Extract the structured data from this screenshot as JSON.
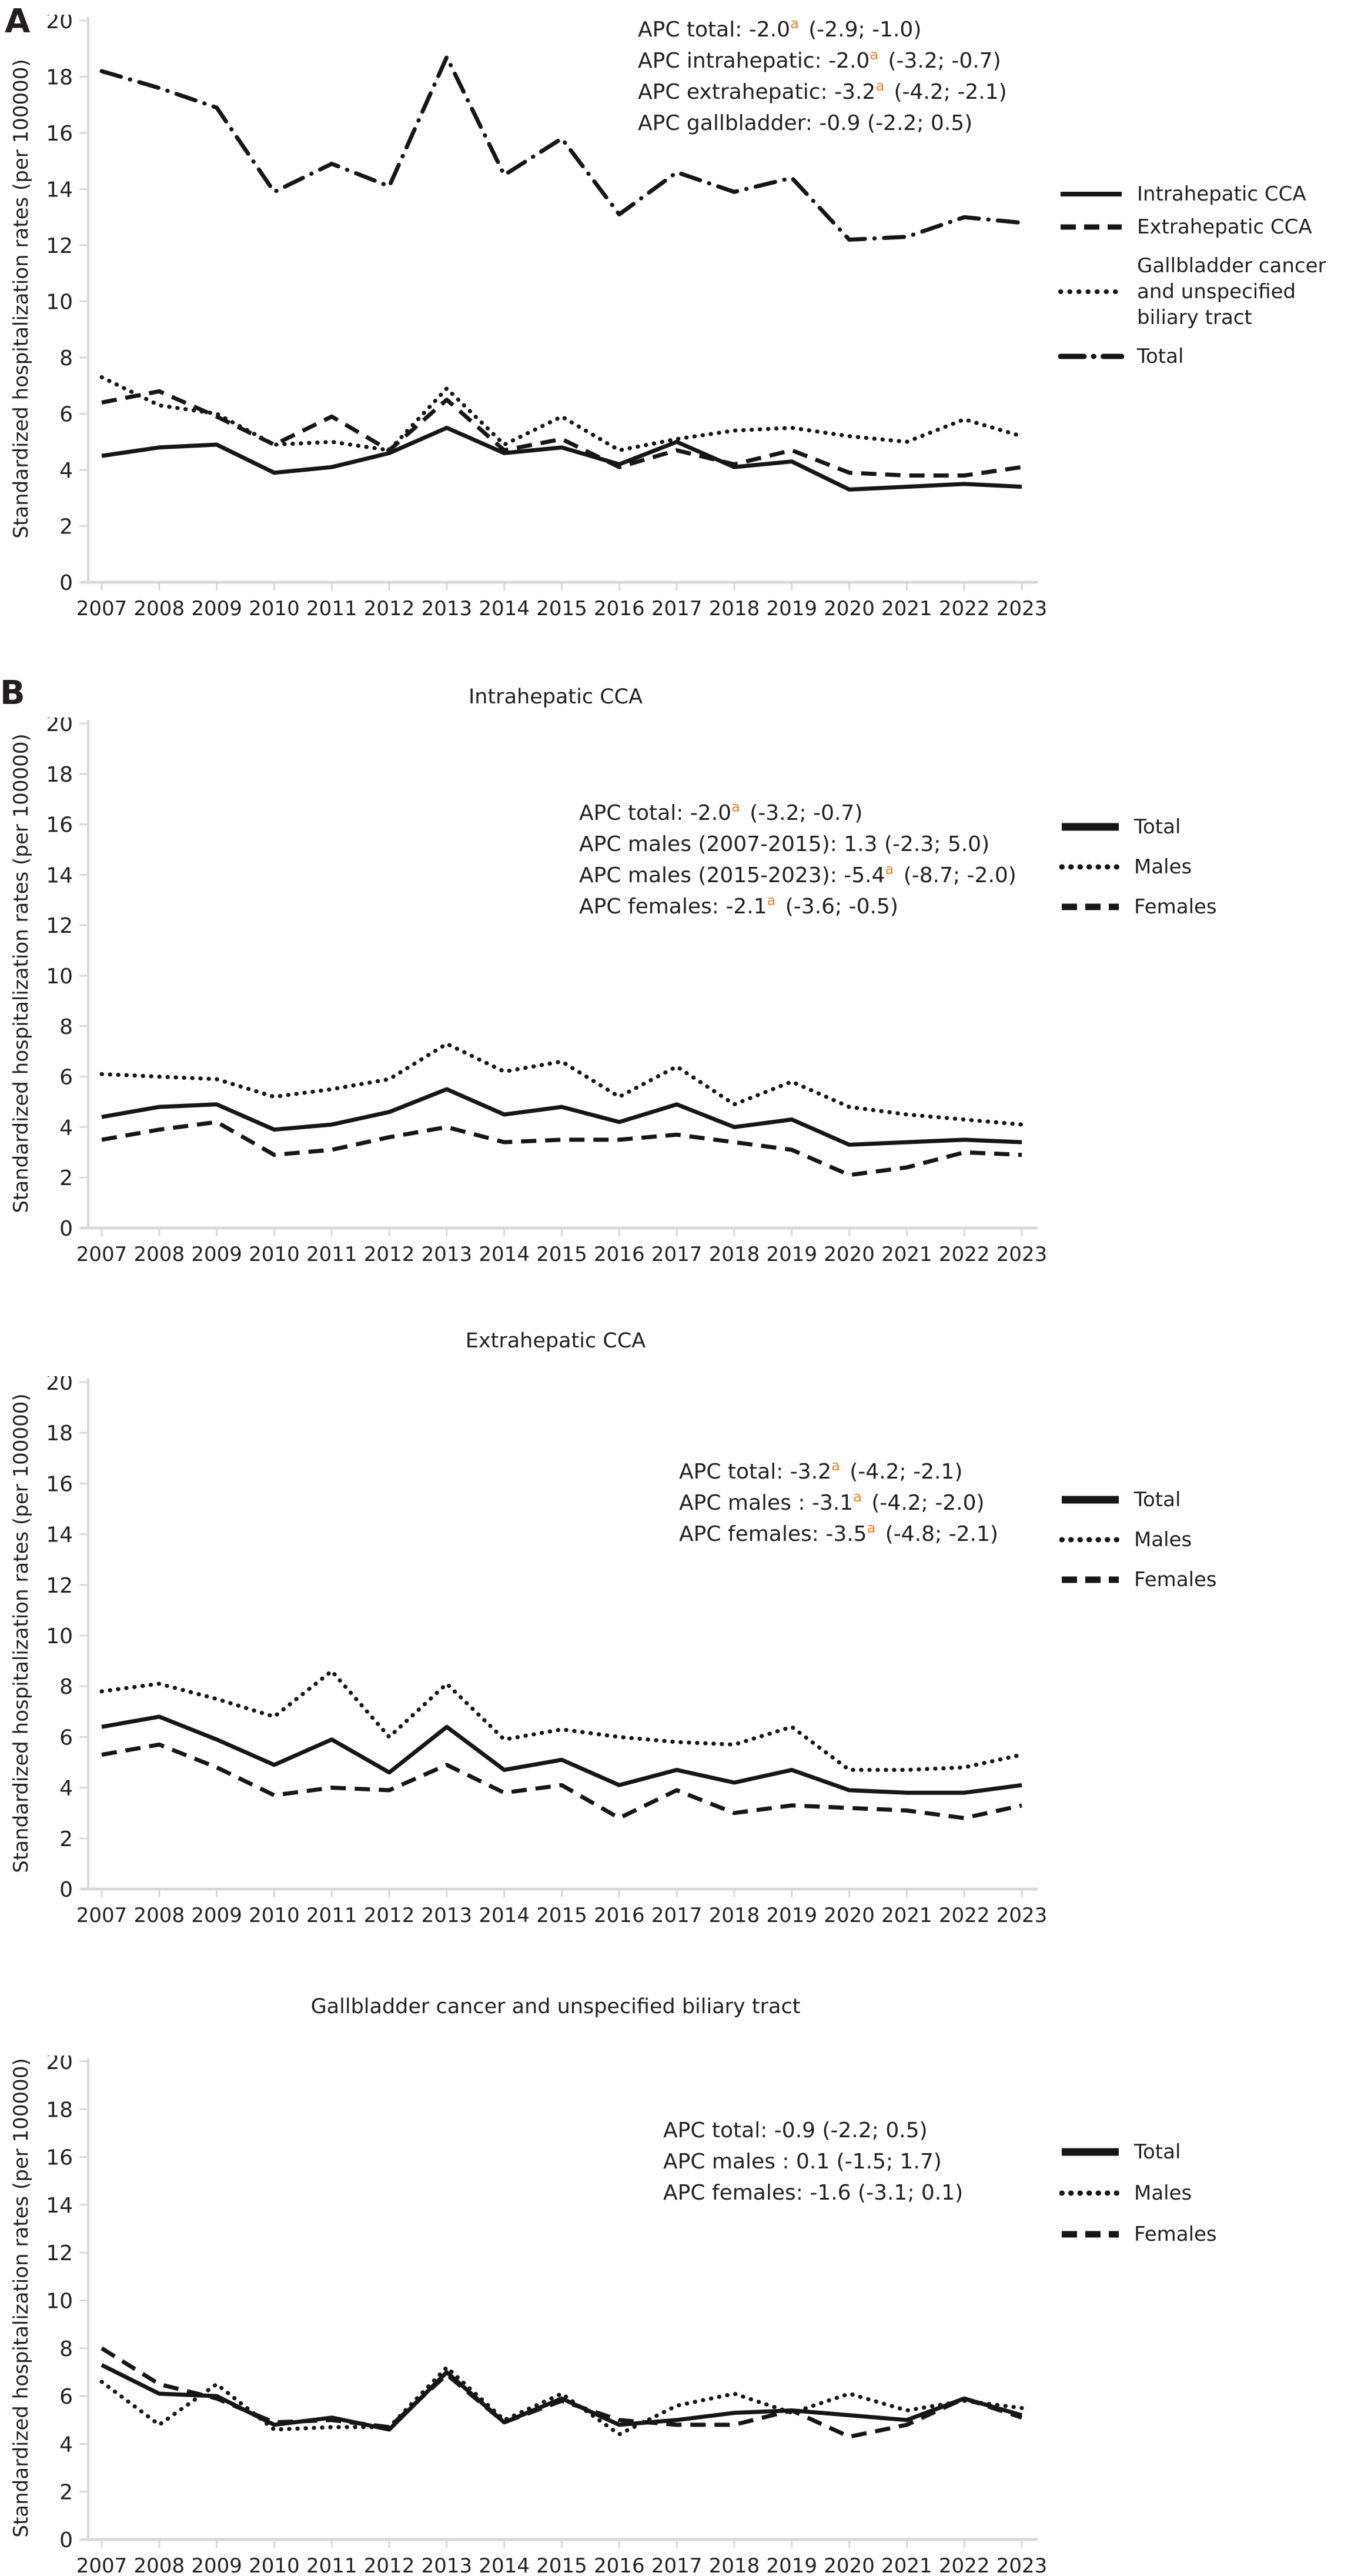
{
  "figure": {
    "panel_a_letter": "A",
    "panel_b_letter": "B",
    "y_axis_label": "Standardized hospitalization rates (per 100000)"
  },
  "colors": {
    "line": "#161616",
    "text": "#231f20",
    "axis": "#d8d8d8",
    "superscript_orange": "#f57e20",
    "background": "#ffffff"
  },
  "chart_data": [
    {
      "id": "panel-a-overview",
      "type": "line",
      "title": "",
      "ylabel": "Standardized hospitalization rates (per 100000)",
      "ylim": [
        0,
        20
      ],
      "y_ticks": [
        0,
        2,
        4,
        6,
        8,
        10,
        12,
        14,
        16,
        18,
        20
      ],
      "grid": false,
      "legend_position": "right",
      "x": [
        "2007",
        "2008",
        "2009",
        "2010",
        "2011",
        "2012",
        "2013",
        "2014",
        "2015",
        "2016",
        "2017",
        "2018",
        "2019",
        "2020",
        "2021",
        "2022",
        "2023"
      ],
      "series": [
        {
          "name": "Intrahepatic CCA",
          "style": "solid",
          "values": [
            4.5,
            4.8,
            4.9,
            3.9,
            4.1,
            4.6,
            5.5,
            4.6,
            4.8,
            4.2,
            5.0,
            4.1,
            4.3,
            3.3,
            3.4,
            3.5,
            3.4
          ]
        },
        {
          "name": "Extrahepatic CCA",
          "style": "dashed",
          "values": [
            6.4,
            6.8,
            5.9,
            4.9,
            5.9,
            4.7,
            6.5,
            4.7,
            5.1,
            4.1,
            4.7,
            4.2,
            4.7,
            3.9,
            3.8,
            3.8,
            4.1
          ]
        },
        {
          "name": "Gallbladder cancer and unspecified biliary tract",
          "style": "dotted",
          "values": [
            7.3,
            6.3,
            6.0,
            4.9,
            5.0,
            4.7,
            6.9,
            4.9,
            5.9,
            4.7,
            5.1,
            5.4,
            5.5,
            5.2,
            5.0,
            5.8,
            5.2
          ]
        },
        {
          "name": "Total",
          "style": "dashdot",
          "values": [
            18.2,
            17.6,
            16.9,
            13.9,
            14.9,
            14.1,
            18.7,
            14.5,
            15.8,
            13.1,
            14.6,
            13.9,
            14.4,
            12.2,
            12.3,
            13.0,
            12.8
          ]
        }
      ],
      "annotations": [
        {
          "pre": "APC total: -2.0",
          "sup": "a",
          "post": " (-2.9; -1.0)"
        },
        {
          "pre": "APC intrahepatic: -2.0",
          "sup": "a",
          "post": " (-3.2; -0.7)"
        },
        {
          "pre": "APC extrahepatic: -3.2",
          "sup": "a",
          "post": " (-4.2; -2.1)"
        },
        {
          "pre": "APC gallbladder: -0.9 (-2.2; 0.5)",
          "sup": "",
          "post": ""
        }
      ]
    },
    {
      "id": "intrahepatic-cca",
      "type": "line",
      "title": "Intrahepatic CCA",
      "ylabel": "Standardized hospitalization rates (per 100000)",
      "ylim": [
        0,
        20
      ],
      "y_ticks": [
        0,
        2,
        4,
        6,
        8,
        10,
        12,
        14,
        16,
        18,
        20
      ],
      "grid": false,
      "legend_position": "right",
      "x": [
        "2007",
        "2008",
        "2009",
        "2010",
        "2011",
        "2012",
        "2013",
        "2014",
        "2015",
        "2016",
        "2017",
        "2018",
        "2019",
        "2020",
        "2021",
        "2022",
        "2023"
      ],
      "series": [
        {
          "name": "Total",
          "style": "solid",
          "values": [
            4.4,
            4.8,
            4.9,
            3.9,
            4.1,
            4.6,
            5.5,
            4.5,
            4.8,
            4.2,
            4.9,
            4.0,
            4.3,
            3.3,
            3.4,
            3.5,
            3.4
          ]
        },
        {
          "name": "Males",
          "style": "dotted",
          "values": [
            6.1,
            6.0,
            5.9,
            5.2,
            5.5,
            5.9,
            7.3,
            6.2,
            6.6,
            5.2,
            6.4,
            4.9,
            5.8,
            4.8,
            4.5,
            4.3,
            4.1
          ]
        },
        {
          "name": "Females",
          "style": "dashed",
          "values": [
            3.5,
            3.9,
            4.2,
            2.9,
            3.1,
            3.6,
            4.0,
            3.4,
            3.5,
            3.5,
            3.7,
            3.4,
            3.1,
            2.1,
            2.4,
            3.0,
            2.9
          ]
        }
      ],
      "annotations": [
        {
          "pre": "APC total: -2.0",
          "sup": "a",
          "post": " (-3.2; -0.7)"
        },
        {
          "pre": "APC males (2007-2015): 1.3 (-2.3; 5.0)",
          "sup": "",
          "post": ""
        },
        {
          "pre": "APC males (2015-2023): -5.4",
          "sup": "a",
          "post": " (-8.7; -2.0)"
        },
        {
          "pre": "APC females: -2.1",
          "sup": "a",
          "post": " (-3.6; -0.5)"
        }
      ]
    },
    {
      "id": "extrahepatic-cca",
      "type": "line",
      "title": "Extrahepatic CCA",
      "ylabel": "Standardized hospitalization rates (per 100000)",
      "ylim": [
        0,
        20
      ],
      "y_ticks": [
        0,
        2,
        4,
        6,
        8,
        10,
        12,
        14,
        16,
        18,
        20
      ],
      "grid": false,
      "legend_position": "right",
      "x": [
        "2007",
        "2008",
        "2009",
        "2010",
        "2011",
        "2012",
        "2013",
        "2014",
        "2015",
        "2016",
        "2017",
        "2018",
        "2019",
        "2020",
        "2021",
        "2022",
        "2023"
      ],
      "series": [
        {
          "name": "Total",
          "style": "solid",
          "values": [
            6.4,
            6.8,
            5.9,
            4.9,
            5.9,
            4.6,
            6.4,
            4.7,
            5.1,
            4.1,
            4.7,
            4.2,
            4.7,
            3.9,
            3.8,
            3.8,
            4.1
          ]
        },
        {
          "name": "Males",
          "style": "dotted",
          "values": [
            7.8,
            8.1,
            7.5,
            6.8,
            8.6,
            6.0,
            8.1,
            5.9,
            6.3,
            6.0,
            5.8,
            5.7,
            6.4,
            4.7,
            4.7,
            4.8,
            5.3
          ]
        },
        {
          "name": "Females",
          "style": "dashed",
          "values": [
            5.3,
            5.7,
            4.8,
            3.7,
            4.0,
            3.9,
            4.9,
            3.8,
            4.1,
            2.8,
            3.9,
            3.0,
            3.3,
            3.2,
            3.1,
            2.8,
            3.3
          ]
        }
      ],
      "annotations": [
        {
          "pre": "APC total: -3.2",
          "sup": "a",
          "post": " (-4.2; -2.1)"
        },
        {
          "pre": "APC males : -3.1",
          "sup": "a",
          "post": " (-4.2; -2.0)"
        },
        {
          "pre": "APC females: -3.5",
          "sup": "a",
          "post": " (-4.8; -2.1)"
        }
      ]
    },
    {
      "id": "gallbladder",
      "type": "line",
      "title": "Gallbladder cancer and unspecified biliary tract",
      "ylabel": "Standardized hospitalization rates (per 100000)",
      "ylim": [
        0,
        20
      ],
      "y_ticks": [
        0,
        2,
        4,
        6,
        8,
        10,
        12,
        14,
        16,
        18,
        20
      ],
      "grid": false,
      "legend_position": "right",
      "x": [
        "2007",
        "2008",
        "2009",
        "2010",
        "2011",
        "2012",
        "2013",
        "2014",
        "2015",
        "2016",
        "2017",
        "2018",
        "2019",
        "2020",
        "2021",
        "2022",
        "2023"
      ],
      "series": [
        {
          "name": "Total",
          "style": "solid",
          "values": [
            7.3,
            6.1,
            6.0,
            4.8,
            5.1,
            4.6,
            7.0,
            4.9,
            5.9,
            4.8,
            5.0,
            5.3,
            5.4,
            5.2,
            5.0,
            5.9,
            5.2
          ]
        },
        {
          "name": "Males",
          "style": "dotted",
          "values": [
            6.6,
            4.8,
            6.5,
            4.6,
            4.7,
            4.7,
            7.2,
            5.0,
            6.1,
            4.4,
            5.6,
            6.1,
            5.3,
            6.1,
            5.4,
            5.8,
            5.5
          ]
        },
        {
          "name": "Females",
          "style": "dashed",
          "values": [
            8.0,
            6.5,
            5.9,
            4.9,
            5.0,
            4.7,
            6.9,
            4.9,
            5.8,
            5.0,
            4.8,
            4.8,
            5.4,
            4.3,
            4.8,
            5.9,
            5.1
          ]
        }
      ],
      "annotations": [
        {
          "pre": "APC total: -0.9 (-2.2; 0.5)",
          "sup": "",
          "post": ""
        },
        {
          "pre": "APC males : 0.1 (-1.5; 1.7)",
          "sup": "",
          "post": ""
        },
        {
          "pre": "APC females: -1.6 (-3.1; 0.1)",
          "sup": "",
          "post": ""
        }
      ]
    }
  ]
}
